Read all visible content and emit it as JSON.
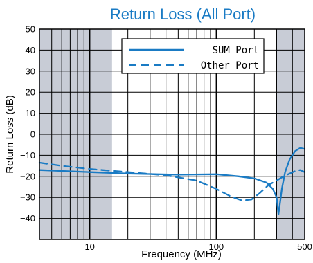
{
  "chart_data": {
    "type": "line",
    "title": "Return Loss (All Port)",
    "xlabel": "Frequency (MHz)",
    "ylabel": "Return Loss (dB)",
    "x_scale": "log",
    "xlim": [
      4,
      500
    ],
    "ylim": [
      -50,
      50
    ],
    "x_tick_labels": [
      {
        "value": 10,
        "label": "10"
      },
      {
        "value": 100,
        "label": "100"
      },
      {
        "value": 500,
        "label": "500"
      }
    ],
    "y_ticks": [
      50,
      40,
      30,
      20,
      10,
      0,
      -10,
      -20,
      -30,
      -40
    ],
    "y_tick_labels": [
      "50",
      "40",
      "30",
      "20",
      "10",
      "0",
      "−10",
      "−20",
      "−30",
      "−40"
    ],
    "shaded_bands": [
      {
        "x": [
          4,
          15
        ]
      },
      {
        "x": [
          300,
          500
        ]
      }
    ],
    "grid": true,
    "legend_position": "top-right",
    "colors": {
      "title": "#1a7bc4",
      "line": "#1a7bc4",
      "band": "#c8ccd6"
    },
    "series": [
      {
        "name": "SUM Port",
        "style": "solid",
        "x": [
          4,
          10,
          20,
          50,
          100,
          150,
          200,
          250,
          280,
          300,
          310,
          320,
          330,
          350,
          380,
          420,
          460,
          500
        ],
        "y": [
          -17,
          -18,
          -18.7,
          -19.2,
          -19,
          -20,
          -21,
          -23,
          -26,
          -30,
          -38,
          -32,
          -26,
          -18,
          -12,
          -8,
          -6.5,
          -7
        ]
      },
      {
        "name": "Other Port",
        "style": "dashed",
        "x": [
          4,
          6,
          10,
          20,
          40,
          70,
          100,
          130,
          160,
          190,
          220,
          260,
          300,
          330,
          370,
          420,
          460,
          500
        ],
        "y": [
          -13.5,
          -15,
          -16.5,
          -18,
          -19.5,
          -22,
          -26,
          -29.5,
          -31.5,
          -31,
          -28,
          -24,
          -22,
          -20.5,
          -19,
          -17.5,
          -17,
          -18
        ]
      }
    ]
  }
}
